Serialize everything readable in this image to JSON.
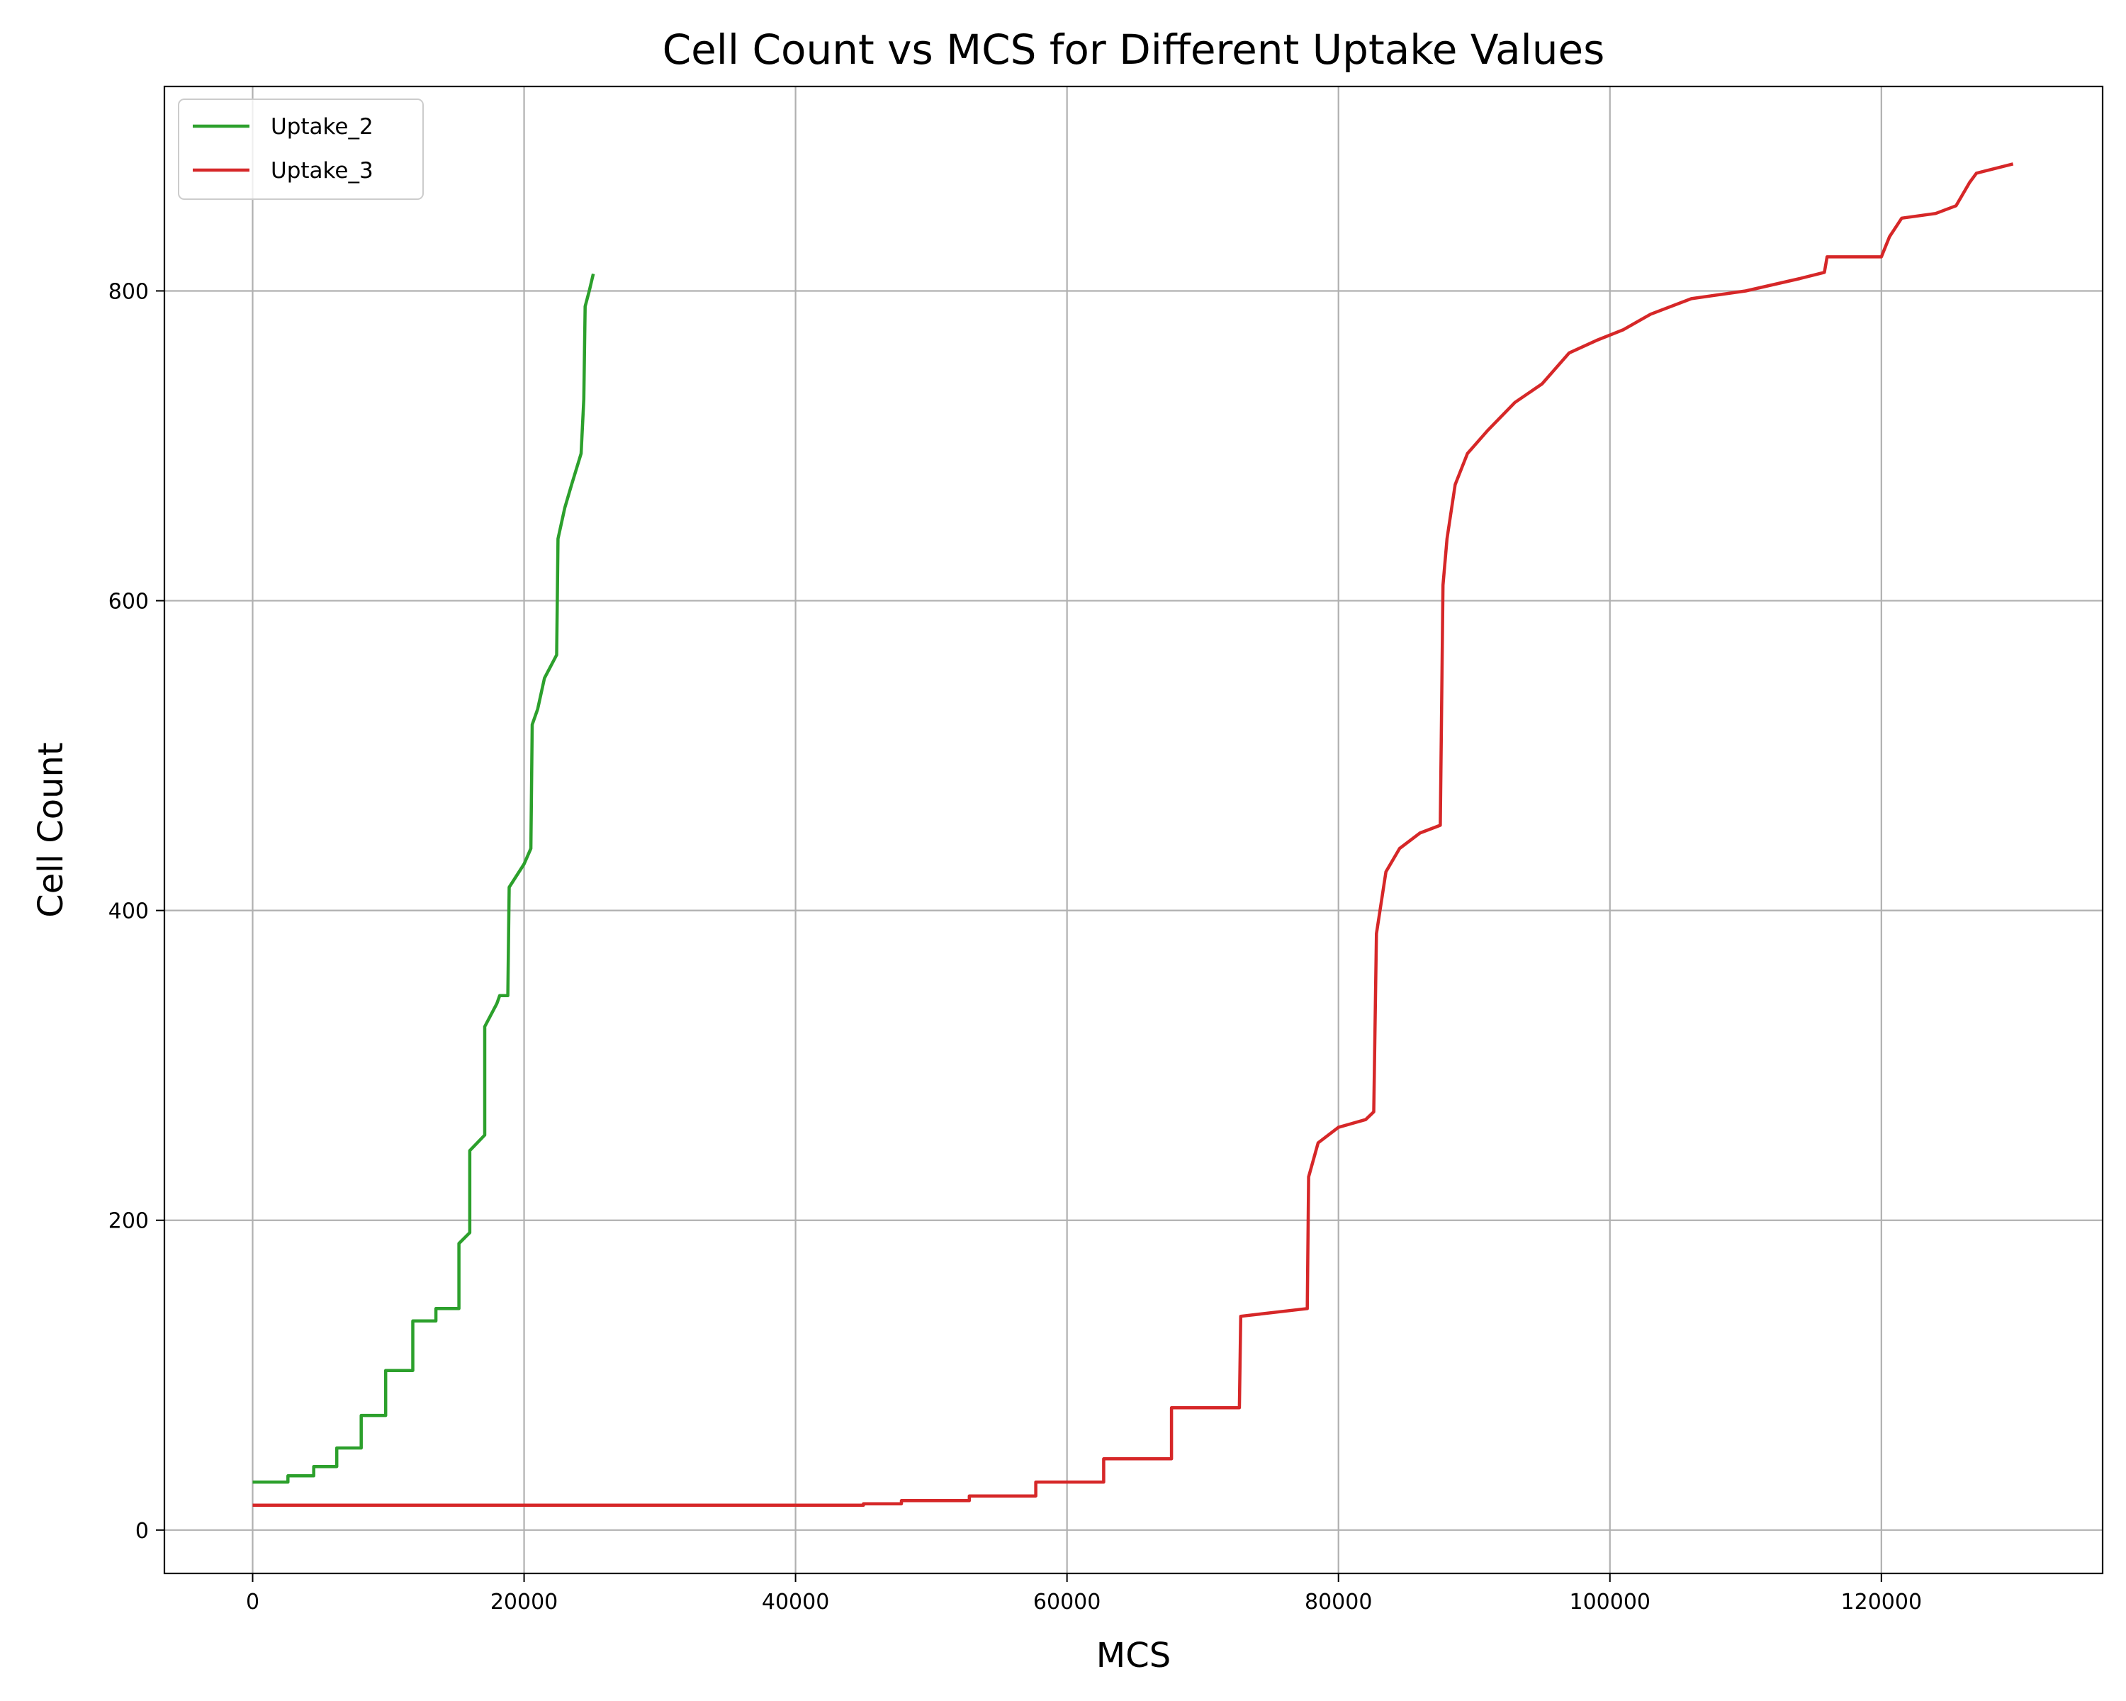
{
  "chart_data": {
    "type": "line",
    "title": "Cell Count vs MCS for Different Uptake Values",
    "xlabel": "MCS",
    "ylabel": "Cell Count",
    "xlim": [
      -6500,
      136300
    ],
    "ylim": [
      -28,
      932
    ],
    "xticks": [
      0,
      20000,
      40000,
      60000,
      80000,
      100000,
      120000
    ],
    "yticks": [
      0,
      200,
      400,
      600,
      800
    ],
    "xtick_labels": [
      "0",
      "20000",
      "40000",
      "60000",
      "80000",
      "100000",
      "120000"
    ],
    "ytick_labels": [
      "0",
      "200",
      "400",
      "600",
      "800"
    ],
    "grid": true,
    "legend_position": "top-left",
    "series": [
      {
        "name": "Uptake_2",
        "color": "#2ca02c",
        "x": [
          0,
          2600,
          2600,
          4500,
          4500,
          6200,
          6200,
          8000,
          8000,
          9800,
          9800,
          11800,
          11800,
          13500,
          13500,
          15200,
          15200,
          16000,
          16000,
          17100,
          17100,
          18000,
          18200,
          18800,
          18900,
          20000,
          20500,
          20600,
          21000,
          21500,
          22400,
          22500,
          23000,
          23500,
          24200,
          24400,
          24500,
          24800,
          25100
        ],
        "y": [
          31,
          31,
          35,
          35,
          41,
          41,
          53,
          53,
          74,
          74,
          103,
          103,
          135,
          135,
          143,
          143,
          185,
          192,
          245,
          255,
          325,
          340,
          345,
          345,
          415,
          430,
          440,
          520,
          530,
          550,
          565,
          640,
          660,
          675,
          695,
          730,
          790,
          800,
          811
        ]
      },
      {
        "name": "Uptake_3",
        "color": "#d62728",
        "x": [
          0,
          45000,
          45000,
          47800,
          47800,
          52800,
          52800,
          57700,
          57700,
          62700,
          62700,
          67700,
          67700,
          72700,
          72800,
          77700,
          77800,
          78500,
          80000,
          82000,
          82600,
          82800,
          83500,
          84500,
          86000,
          87500,
          87700,
          88000,
          88600,
          89500,
          91000,
          93000,
          95000,
          97000,
          99000,
          101000,
          103000,
          106000,
          110000,
          114000,
          115800,
          116000,
          120000,
          120600,
          121500,
          124000,
          125500,
          126500,
          127000,
          129700
        ],
        "y": [
          16,
          16,
          17,
          17,
          19,
          19,
          22,
          22,
          31,
          31,
          46,
          46,
          79,
          79,
          138,
          143,
          228,
          250,
          260,
          265,
          270,
          385,
          425,
          440,
          450,
          455,
          610,
          640,
          675,
          695,
          710,
          728,
          740,
          760,
          768,
          775,
          785,
          795,
          800,
          808,
          812,
          822,
          822,
          835,
          847,
          850,
          855,
          870,
          876,
          882
        ]
      }
    ]
  }
}
